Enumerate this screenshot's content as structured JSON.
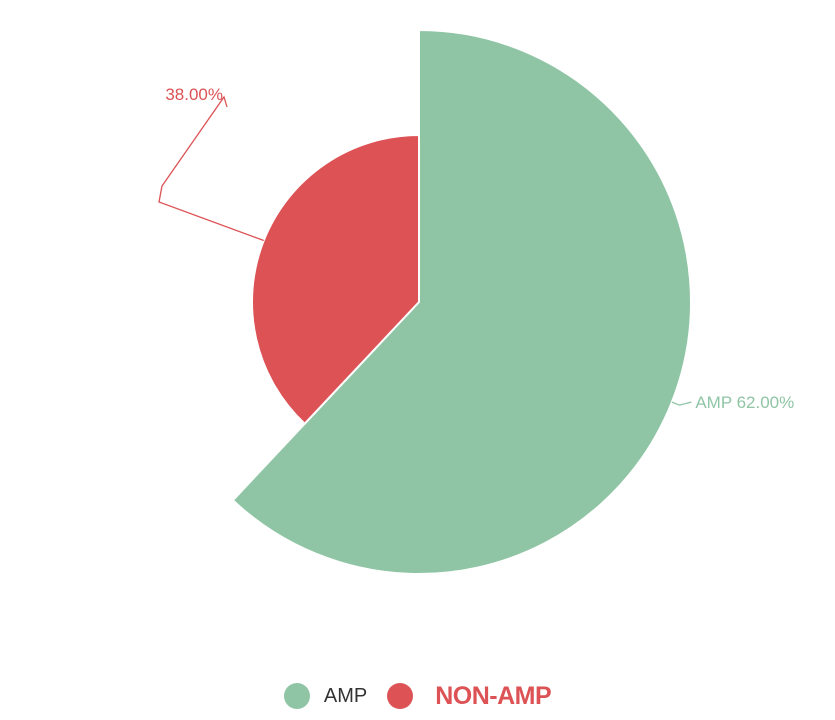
{
  "chart_data": {
    "type": "pie",
    "variant": "rose",
    "slices": [
      {
        "name": "AMP",
        "value": 62.0,
        "label": "AMP 62.00%",
        "color": "#8fc5a5"
      },
      {
        "name": "NON-AMP",
        "value": 38.0,
        "label": "38.00%",
        "color": "#dc5255"
      }
    ],
    "legend": {
      "position": "bottom-center",
      "items": [
        {
          "name": "AMP",
          "color": "#8fc5a5",
          "text_color": "#333333",
          "emphasis": false
        },
        {
          "name": "NON-AMP",
          "color": "#dc5255",
          "text_color": "#dc5255",
          "emphasis": true
        }
      ]
    }
  }
}
